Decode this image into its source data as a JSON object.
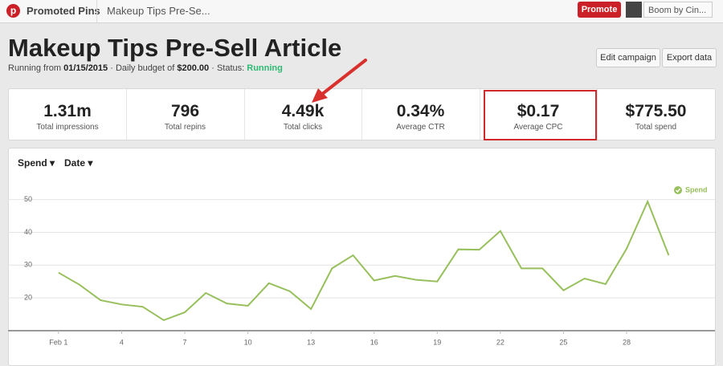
{
  "nav": {
    "brand": "Promoted Pins",
    "breadcrumb": "Makeup Tips Pre-Se...",
    "promote": "Promote",
    "account": "Boom by Cin..."
  },
  "header": {
    "title": "Makeup Tips Pre-Sell Article",
    "running_prefix": "Running from",
    "start_date": "01/15/2015",
    "budget_prefix": "· Daily budget of",
    "budget": "$200.00",
    "status_prefix": "· Status:",
    "status": "Running",
    "buttons": [
      "Edit campaign",
      "Export data"
    ]
  },
  "stats": [
    {
      "value": "1.31m",
      "label": "Total impressions"
    },
    {
      "value": "796",
      "label": "Total repins"
    },
    {
      "value": "4.49k",
      "label": "Total clicks"
    },
    {
      "value": "0.34%",
      "label": "Average CTR"
    },
    {
      "value": "$0.17",
      "label": "Average CPC"
    },
    {
      "value": "$775.50",
      "label": "Total spend"
    }
  ],
  "chart_controls": [
    "Spend",
    "Date"
  ],
  "chart_data": {
    "type": "line",
    "x": [
      1,
      2,
      3,
      4,
      5,
      6,
      7,
      8,
      9,
      10,
      11,
      12,
      13,
      14,
      15,
      16,
      17,
      18,
      19,
      20,
      21,
      22,
      23,
      24,
      25,
      26,
      27,
      28,
      29,
      30
    ],
    "series": [
      {
        "name": "Spend",
        "color": "#97c05c",
        "values": [
          27.7,
          24,
          19.3,
          18,
          17.3,
          13.2,
          15.6,
          21.5,
          18.3,
          17.6,
          24.5,
          22,
          16.6,
          29,
          33,
          25.3,
          26.7,
          25.5,
          25,
          34.8,
          34.7,
          40.4,
          29,
          29,
          22.3,
          25.9,
          24.2,
          35,
          49.4,
          33
        ]
      }
    ],
    "xlim": [
      -1.4,
      32.2
    ],
    "xticks": [
      {
        "value": 1,
        "label": "Feb 1"
      },
      4,
      7,
      10,
      13,
      16,
      19,
      22,
      25,
      28
    ],
    "ylim": [
      10,
      57
    ],
    "yticks": [
      20,
      30,
      40,
      50
    ],
    "grid": true,
    "legend": "top-right"
  }
}
